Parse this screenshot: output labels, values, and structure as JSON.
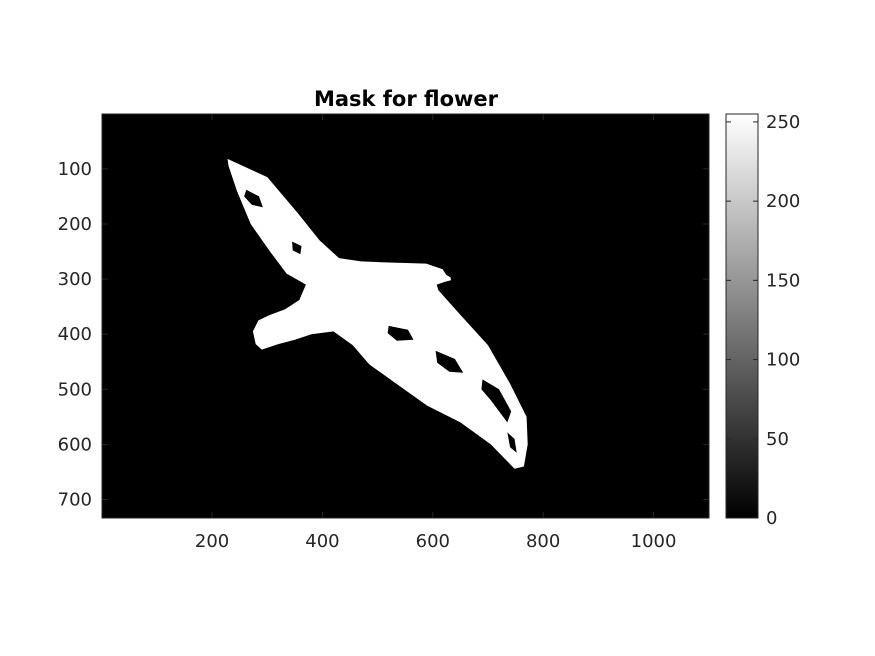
{
  "chart_data": {
    "type": "heatmap",
    "title": "Mask for flower",
    "xlabel": "",
    "ylabel": "",
    "xlim": [
      0.5,
      1100.5
    ],
    "ylim": [
      0.5,
      733.5
    ],
    "y_reversed": true,
    "x_ticks": [
      200,
      400,
      600,
      800,
      1000
    ],
    "y_ticks": [
      100,
      200,
      300,
      400,
      500,
      600,
      700
    ],
    "colormap": "gray",
    "clim": [
      0,
      255
    ],
    "colorbar_ticks": [
      0,
      50,
      100,
      150,
      200,
      250
    ],
    "background_value": 0,
    "mask_value": 255,
    "mask_shape": "gull-in-flight",
    "mask_outline": [
      [
        228,
        82
      ],
      [
        300,
        115
      ],
      [
        355,
        180
      ],
      [
        395,
        230
      ],
      [
        430,
        262
      ],
      [
        470,
        268
      ],
      [
        520,
        270
      ],
      [
        588,
        272
      ],
      [
        618,
        282
      ],
      [
        624,
        292
      ],
      [
        632,
        297
      ],
      [
        633,
        302
      ],
      [
        622,
        305
      ],
      [
        607,
        310
      ],
      [
        610,
        320
      ],
      [
        650,
        365
      ],
      [
        700,
        420
      ],
      [
        740,
        490
      ],
      [
        770,
        550
      ],
      [
        772,
        600
      ],
      [
        765,
        640
      ],
      [
        748,
        644
      ],
      [
        705,
        600
      ],
      [
        650,
        560
      ],
      [
        590,
        530
      ],
      [
        520,
        480
      ],
      [
        485,
        455
      ],
      [
        455,
        420
      ],
      [
        420,
        395
      ],
      [
        380,
        400
      ],
      [
        350,
        410
      ],
      [
        320,
        418
      ],
      [
        290,
        428
      ],
      [
        279,
        418
      ],
      [
        274,
        395
      ],
      [
        284,
        375
      ],
      [
        305,
        365
      ],
      [
        332,
        355
      ],
      [
        358,
        338
      ],
      [
        370,
        310
      ],
      [
        335,
        290
      ],
      [
        305,
        250
      ],
      [
        270,
        200
      ],
      [
        245,
        140
      ],
      [
        230,
        95
      ]
    ],
    "mask_holes": [
      [
        [
          690,
          482
        ],
        [
          720,
          500
        ],
        [
          742,
          540
        ],
        [
          735,
          560
        ],
        [
          705,
          520
        ],
        [
          688,
          500
        ]
      ],
      [
        [
          605,
          430
        ],
        [
          640,
          445
        ],
        [
          655,
          470
        ],
        [
          630,
          468
        ],
        [
          608,
          452
        ]
      ],
      [
        [
          520,
          385
        ],
        [
          555,
          392
        ],
        [
          565,
          410
        ],
        [
          535,
          412
        ],
        [
          518,
          398
        ]
      ],
      [
        [
          262,
          138
        ],
        [
          285,
          150
        ],
        [
          292,
          170
        ],
        [
          272,
          165
        ],
        [
          258,
          150
        ]
      ],
      [
        [
          735,
          578
        ],
        [
          748,
          590
        ],
        [
          752,
          615
        ],
        [
          740,
          605
        ]
      ],
      [
        [
          345,
          232
        ],
        [
          362,
          240
        ],
        [
          360,
          255
        ],
        [
          346,
          248
        ]
      ]
    ]
  }
}
